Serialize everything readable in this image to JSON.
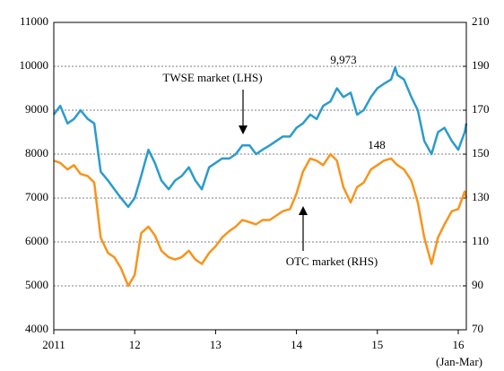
{
  "chart_data": {
    "type": "line",
    "x": [
      2011,
      2011.08,
      2011.17,
      2011.25,
      2011.33,
      2011.42,
      2011.5,
      2011.58,
      2011.67,
      2011.75,
      2011.83,
      2011.92,
      2012,
      2012.08,
      2012.17,
      2012.25,
      2012.33,
      2012.42,
      2012.5,
      2012.58,
      2012.67,
      2012.75,
      2012.83,
      2012.92,
      2013,
      2013.08,
      2013.17,
      2013.25,
      2013.33,
      2013.42,
      2013.5,
      2013.58,
      2013.67,
      2013.75,
      2013.83,
      2013.92,
      2014,
      2014.08,
      2014.17,
      2014.25,
      2014.33,
      2014.42,
      2014.5,
      2014.58,
      2014.67,
      2014.75,
      2014.83,
      2014.92,
      2015,
      2015.08,
      2015.17,
      2015.22,
      2015.25,
      2015.33,
      2015.42,
      2015.5,
      2015.58,
      2015.67,
      2015.75,
      2015.83,
      2015.92,
      2016,
      2016.08,
      2016.1
    ],
    "series": [
      {
        "name": "TWSE market (LHS)",
        "color": "#2b9bcc",
        "axis": "y",
        "values": [
          8900,
          9100,
          8700,
          8800,
          9000,
          8800,
          8700,
          7600,
          7400,
          7200,
          7000,
          6800,
          7000,
          7500,
          8100,
          7800,
          7400,
          7200,
          7400,
          7500,
          7700,
          7400,
          7200,
          7700,
          7800,
          7900,
          7900,
          8000,
          8200,
          8200,
          8000,
          8100,
          8200,
          8300,
          8400,
          8400,
          8600,
          8700,
          8900,
          8800,
          9100,
          9200,
          9500,
          9300,
          9400,
          8900,
          9000,
          9300,
          9500,
          9600,
          9700,
          9973,
          9800,
          9700,
          9300,
          9000,
          8300,
          8000,
          8500,
          8600,
          8300,
          8100,
          8500,
          8700
        ]
      },
      {
        "name": "OTC market (RHS)",
        "color": "#f7941d",
        "axis": "y2",
        "values": [
          147,
          146,
          143,
          145,
          141,
          140,
          137,
          112,
          105,
          103,
          98,
          90,
          95,
          114,
          117,
          113,
          106,
          103,
          102,
          103,
          106,
          102,
          100,
          105,
          108,
          112,
          115,
          117,
          120,
          119,
          118,
          120,
          120,
          122,
          124,
          125,
          132,
          142,
          148,
          147,
          145,
          150,
          147,
          135,
          128,
          135,
          137,
          143,
          145,
          147,
          148,
          146,
          145,
          143,
          138,
          128,
          112,
          100,
          112,
          118,
          124,
          125,
          133,
          130
        ]
      }
    ],
    "xlim": [
      2011,
      2016.1
    ],
    "xticks": [
      2011,
      {
        "value": 2012,
        "label": "12"
      },
      {
        "value": 2013,
        "label": "13"
      },
      {
        "value": 2014,
        "label": "14"
      },
      {
        "value": 2015,
        "label": "15"
      },
      {
        "value": 2016,
        "label": "16"
      }
    ],
    "x_note": "(Jan-Mar)",
    "ylim": [
      4000,
      11000
    ],
    "yticks": [
      4000,
      5000,
      6000,
      7000,
      8000,
      9000,
      10000,
      11000
    ],
    "y2lim": [
      70,
      210
    ],
    "y2ticks": [
      70,
      90,
      110,
      130,
      150,
      170,
      190,
      210
    ],
    "grid": true,
    "annotations": [
      {
        "text": "TWSE market (LHS)"
      },
      {
        "text": "OTC market (RHS)"
      },
      {
        "text": "9,973"
      },
      {
        "text": "148"
      }
    ]
  }
}
